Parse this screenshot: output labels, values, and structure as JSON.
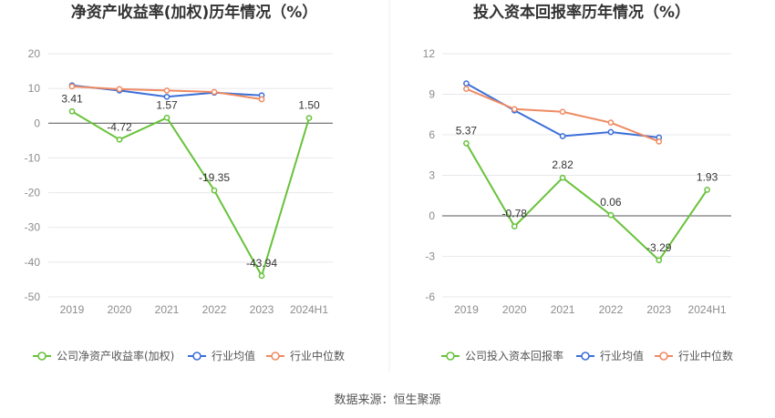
{
  "footer": "数据来源：恒生聚源",
  "colors": {
    "company": "#67c23a",
    "avg": "#3b6fd8",
    "median": "#ef8a62",
    "grid": "#e8e8ee",
    "axis": "#555555"
  },
  "chart_data": [
    {
      "type": "line",
      "title": "净资产收益率(加权)历年情况（%）",
      "categories": [
        "2019",
        "2020",
        "2021",
        "2022",
        "2023",
        "2024H1"
      ],
      "ylim": [
        -50,
        20
      ],
      "yticks": [
        20,
        10,
        0,
        -10,
        -20,
        -30,
        -40,
        -50
      ],
      "grid": true,
      "legend_position": "bottom",
      "series": [
        {
          "name": "公司净资产收益率(加权)",
          "key": "company",
          "values": [
            3.41,
            -4.72,
            1.57,
            -19.35,
            -43.94,
            1.5
          ],
          "labels": [
            "3.41",
            "-4.72",
            "1.57",
            "-19.35",
            "-43.94",
            "1.50"
          ]
        },
        {
          "name": "行业均值",
          "key": "avg",
          "values": [
            10.9,
            9.4,
            7.6,
            8.8,
            8.0,
            null
          ]
        },
        {
          "name": "行业中位数",
          "key": "median",
          "values": [
            10.6,
            9.8,
            9.4,
            9.0,
            6.9,
            null
          ]
        }
      ]
    },
    {
      "type": "line",
      "title": "投入资本回报率历年情况（%）",
      "categories": [
        "2019",
        "2020",
        "2021",
        "2022",
        "2023",
        "2024H1"
      ],
      "ylim": [
        -6,
        12
      ],
      "yticks": [
        12,
        9,
        6,
        3,
        0,
        -3,
        -6
      ],
      "grid": true,
      "legend_position": "bottom",
      "series": [
        {
          "name": "公司投入资本回报率",
          "key": "company",
          "values": [
            5.37,
            -0.78,
            2.82,
            0.06,
            -3.29,
            1.93
          ],
          "labels": [
            "5.37",
            "-0.78",
            "2.82",
            "0.06",
            "-3.29",
            "1.93"
          ]
        },
        {
          "name": "行业均值",
          "key": "avg",
          "values": [
            9.8,
            7.8,
            5.9,
            6.2,
            5.8,
            null
          ]
        },
        {
          "name": "行业中位数",
          "key": "median",
          "values": [
            9.4,
            7.9,
            7.7,
            6.9,
            5.5,
            null
          ]
        }
      ]
    }
  ]
}
